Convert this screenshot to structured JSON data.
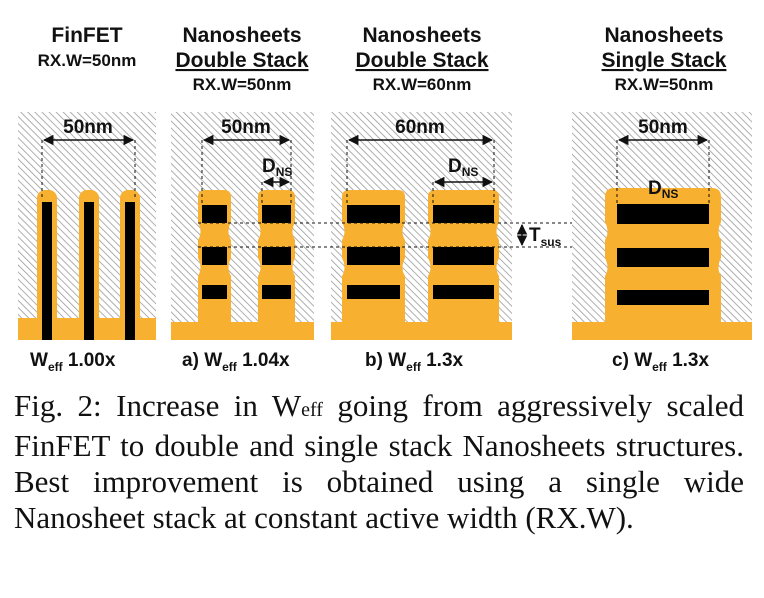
{
  "panels": [
    {
      "title1": "FinFET",
      "title2": "",
      "rxw": "RX.W=50nm",
      "width_label": "50nm",
      "label_prefix": "",
      "label_w": "W",
      "label_sub": "eff",
      "label_val": " 1.00x"
    },
    {
      "title1": "Nanosheets",
      "title2": "Double Stack",
      "rxw": "RX.W=50nm",
      "width_label": "50nm",
      "d_label": "D",
      "d_sub": "NS",
      "label_prefix": "a) ",
      "label_w": "W",
      "label_sub": "eff",
      "label_val": " 1.04x"
    },
    {
      "title1": "Nanosheets",
      "title2": "Double Stack",
      "rxw": "RX.W=60nm",
      "width_label": "60nm",
      "d_label": "D",
      "d_sub": "NS",
      "label_prefix": "b) ",
      "label_w": "W",
      "label_sub": "eff",
      "label_val": " 1.3x"
    },
    {
      "title1": "Nanosheets",
      "title2": "Single Stack",
      "rxw": "RX.W=50nm",
      "width_label": "50nm",
      "d_label": "D",
      "d_sub": "NS",
      "label_prefix": "c) ",
      "label_w": "W",
      "label_sub": "eff",
      "label_val": " 1.3x"
    }
  ],
  "tsus": {
    "label": "T",
    "sub": "sus"
  },
  "caption": {
    "before": "Fig. 2: Increase in W",
    "sub": "eff",
    "after": " going from aggressively scaled FinFET to double and single stack Nanosheets structures. Best improvement is obtained using a single wide Nanosheet stack at constant active width (RX.W)."
  },
  "colors": {
    "gate": "#F7B02F",
    "channel": "#000000",
    "hatch": "#9a9a9a",
    "background": "#ffffff"
  }
}
